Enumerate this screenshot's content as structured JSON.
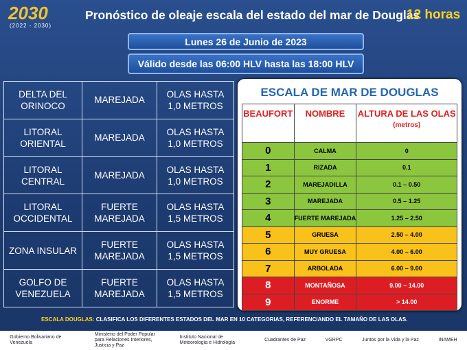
{
  "header": {
    "logo": "2030",
    "logo_years": "(2022 - 2030)",
    "title": "Pronóstico de oleaje escala del estado del mar de Douglas",
    "period": "12 horas"
  },
  "date": "Lunes 26 de Junio de 2023",
  "validity": "Válido desde las 06:00 HLV hasta las 18:00 HLV",
  "forecast": {
    "rows": [
      [
        "DELTA DEL ORINOCO",
        "MAREJADA",
        "OLAS HASTA 1,0 METROS"
      ],
      [
        "LITORAL ORIENTAL",
        "MAREJADA",
        "OLAS HASTA 1,0 METROS"
      ],
      [
        "LITORAL CENTRAL",
        "MAREJADA",
        "OLAS HASTA 1,0 METROS"
      ],
      [
        "LITORAL OCCIDENTAL",
        "FUERTE MAREJADA",
        "OLAS HASTA 1,5 METROS"
      ],
      [
        "ZONA INSULAR",
        "FUERTE MAREJADA",
        "OLAS HASTA 1,5 METROS"
      ],
      [
        "GOLFO DE VENEZUELA",
        "FUERTE MAREJADA",
        "OLAS HASTA 1,5 METROS"
      ]
    ]
  },
  "scale": {
    "title": "ESCALA  DE MAR DE DOUGLAS",
    "headers": [
      "BEAUFORT",
      "NOMBRE",
      "ALTURA DE LAS OLAS"
    ],
    "unit": "(metros)",
    "rows": [
      [
        "0",
        "CALMA",
        "0"
      ],
      [
        "1",
        "RIZADA",
        "0.1"
      ],
      [
        "2",
        "MAREJADILLA",
        "0.1 – 0.50"
      ],
      [
        "3",
        "MAREJADA",
        "0.5 – 1.25"
      ],
      [
        "4",
        "FUERTE MAREJADA",
        "1.25 – 2.50"
      ],
      [
        "5",
        "GRUESA",
        "2.50 – 4.00"
      ],
      [
        "6",
        "MUY GRUESA",
        "4.00 – 6.00"
      ],
      [
        "7",
        "ARBOLADA",
        "6.00 – 9.00"
      ],
      [
        "8",
        "MONTAÑOSA",
        "9.00 – 14.00"
      ],
      [
        "9",
        "ENORME",
        "> 14.00"
      ]
    ]
  },
  "note": {
    "label": "ESCALA DOUGLAS:",
    "text": "CLASIFICA LOS DIFERENTES  ESTADOS  DEL MAR EN 10 CATEGORIAS,  REFERENCIANDO  EL TAMAÑO DE LAS OLAS."
  },
  "footer": {
    "logos": [
      "Gobierno Bolivariano de Venezuela",
      "Ministerio del Poder Popular para Relaciones Interiores, Justicia y Paz",
      "Instituto Nacional de Meteorología e Hidrología",
      "Cuadrantes de Paz",
      "VGRPC",
      "Juntos por la Vida y la Paz",
      "INAMEH"
    ]
  }
}
